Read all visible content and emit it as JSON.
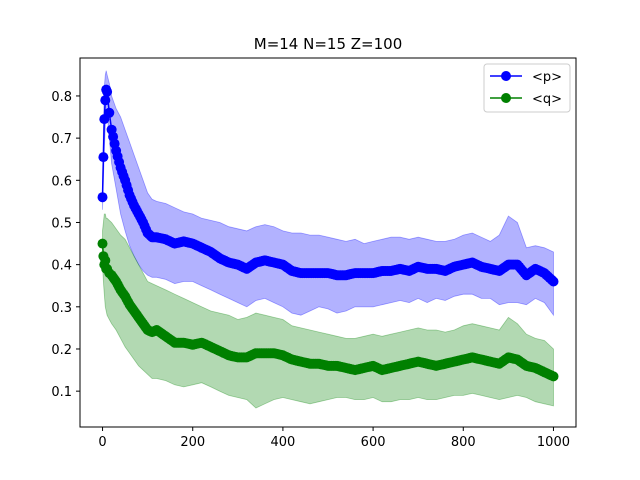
{
  "chart_data": {
    "type": "line",
    "title": "M=14 N=15 Z=100",
    "xlabel": "",
    "ylabel": "",
    "xlim": [
      -50,
      1050
    ],
    "ylim": [
      0.015,
      0.89
    ],
    "x_ticks": [
      0,
      200,
      400,
      600,
      800,
      1000
    ],
    "y_ticks": [
      0.1,
      0.2,
      0.3,
      0.4,
      0.5,
      0.6,
      0.7,
      0.8
    ],
    "legend_position": "top-right",
    "grid": false,
    "series": [
      {
        "name": "<p>",
        "color": "#0000ff",
        "marker": "circle",
        "x": [
          0,
          2,
          4,
          6,
          8,
          10,
          15,
          20,
          30,
          40,
          50,
          60,
          70,
          80,
          90,
          100,
          110,
          120,
          140,
          160,
          180,
          200,
          220,
          240,
          260,
          280,
          300,
          320,
          340,
          360,
          380,
          400,
          420,
          440,
          460,
          480,
          500,
          520,
          540,
          560,
          580,
          600,
          620,
          640,
          660,
          680,
          700,
          720,
          740,
          760,
          780,
          800,
          820,
          840,
          860,
          880,
          900,
          920,
          940,
          960,
          980,
          1000
        ],
        "y": [
          0.56,
          0.655,
          0.745,
          0.79,
          0.815,
          0.81,
          0.76,
          0.72,
          0.67,
          0.63,
          0.6,
          0.565,
          0.54,
          0.52,
          0.5,
          0.475,
          0.465,
          0.465,
          0.46,
          0.45,
          0.455,
          0.45,
          0.44,
          0.43,
          0.415,
          0.405,
          0.4,
          0.39,
          0.405,
          0.41,
          0.405,
          0.4,
          0.385,
          0.38,
          0.38,
          0.38,
          0.38,
          0.375,
          0.375,
          0.38,
          0.38,
          0.38,
          0.385,
          0.385,
          0.39,
          0.385,
          0.395,
          0.39,
          0.39,
          0.385,
          0.395,
          0.4,
          0.405,
          0.395,
          0.39,
          0.385,
          0.4,
          0.4,
          0.375,
          0.39,
          0.38,
          0.36
        ],
        "band_upper": [
          0.58,
          0.72,
          0.82,
          0.85,
          0.86,
          0.85,
          0.83,
          0.8,
          0.77,
          0.75,
          0.72,
          0.69,
          0.66,
          0.63,
          0.6,
          0.57,
          0.555,
          0.55,
          0.545,
          0.535,
          0.525,
          0.52,
          0.51,
          0.505,
          0.5,
          0.49,
          0.485,
          0.48,
          0.49,
          0.495,
          0.49,
          0.48,
          0.475,
          0.475,
          0.47,
          0.47,
          0.465,
          0.46,
          0.455,
          0.46,
          0.45,
          0.455,
          0.46,
          0.465,
          0.465,
          0.46,
          0.465,
          0.46,
          0.455,
          0.455,
          0.46,
          0.47,
          0.475,
          0.465,
          0.455,
          0.47,
          0.515,
          0.5,
          0.44,
          0.445,
          0.44,
          0.43
        ],
        "band_lower": [
          0.53,
          0.6,
          0.67,
          0.73,
          0.76,
          0.76,
          0.7,
          0.64,
          0.58,
          0.52,
          0.48,
          0.445,
          0.42,
          0.4,
          0.385,
          0.375,
          0.37,
          0.37,
          0.365,
          0.355,
          0.36,
          0.36,
          0.35,
          0.34,
          0.33,
          0.32,
          0.31,
          0.3,
          0.315,
          0.32,
          0.31,
          0.3,
          0.285,
          0.28,
          0.29,
          0.3,
          0.295,
          0.285,
          0.29,
          0.3,
          0.3,
          0.3,
          0.305,
          0.31,
          0.315,
          0.31,
          0.32,
          0.31,
          0.32,
          0.315,
          0.325,
          0.33,
          0.33,
          0.32,
          0.32,
          0.305,
          0.31,
          0.31,
          0.305,
          0.32,
          0.31,
          0.28
        ]
      },
      {
        "name": "<q>",
        "color": "#008000",
        "marker": "circle",
        "x": [
          0,
          2,
          4,
          6,
          8,
          10,
          15,
          20,
          30,
          40,
          50,
          60,
          70,
          80,
          90,
          100,
          110,
          120,
          140,
          160,
          180,
          200,
          220,
          240,
          260,
          280,
          300,
          320,
          340,
          360,
          380,
          400,
          420,
          440,
          460,
          480,
          500,
          520,
          540,
          560,
          580,
          600,
          620,
          640,
          660,
          680,
          700,
          720,
          740,
          760,
          780,
          800,
          820,
          840,
          860,
          880,
          900,
          920,
          940,
          960,
          980,
          1000
        ],
        "y": [
          0.45,
          0.42,
          0.4,
          0.41,
          0.39,
          0.39,
          0.38,
          0.375,
          0.36,
          0.34,
          0.325,
          0.305,
          0.29,
          0.275,
          0.26,
          0.245,
          0.24,
          0.245,
          0.23,
          0.215,
          0.215,
          0.21,
          0.215,
          0.205,
          0.195,
          0.185,
          0.18,
          0.18,
          0.19,
          0.19,
          0.19,
          0.185,
          0.175,
          0.17,
          0.165,
          0.165,
          0.16,
          0.16,
          0.155,
          0.15,
          0.155,
          0.16,
          0.15,
          0.155,
          0.16,
          0.165,
          0.17,
          0.165,
          0.16,
          0.165,
          0.17,
          0.175,
          0.18,
          0.175,
          0.17,
          0.165,
          0.18,
          0.175,
          0.16,
          0.155,
          0.145,
          0.135
        ],
        "band_upper": [
          0.48,
          0.5,
          0.52,
          0.52,
          0.51,
          0.51,
          0.505,
          0.5,
          0.485,
          0.47,
          0.46,
          0.44,
          0.42,
          0.4,
          0.38,
          0.36,
          0.355,
          0.35,
          0.34,
          0.33,
          0.32,
          0.31,
          0.3,
          0.29,
          0.285,
          0.28,
          0.27,
          0.275,
          0.285,
          0.28,
          0.275,
          0.27,
          0.255,
          0.25,
          0.245,
          0.24,
          0.235,
          0.23,
          0.225,
          0.225,
          0.23,
          0.235,
          0.23,
          0.235,
          0.24,
          0.245,
          0.25,
          0.245,
          0.245,
          0.24,
          0.245,
          0.255,
          0.26,
          0.255,
          0.25,
          0.245,
          0.275,
          0.26,
          0.235,
          0.225,
          0.22,
          0.2
        ],
        "band_lower": [
          0.4,
          0.36,
          0.33,
          0.3,
          0.29,
          0.28,
          0.27,
          0.26,
          0.245,
          0.225,
          0.205,
          0.19,
          0.175,
          0.16,
          0.15,
          0.14,
          0.13,
          0.13,
          0.125,
          0.115,
          0.11,
          0.115,
          0.12,
          0.11,
          0.1,
          0.09,
          0.085,
          0.08,
          0.06,
          0.07,
          0.08,
          0.085,
          0.08,
          0.075,
          0.07,
          0.075,
          0.08,
          0.085,
          0.085,
          0.08,
          0.08,
          0.085,
          0.075,
          0.075,
          0.08,
          0.08,
          0.085,
          0.08,
          0.08,
          0.085,
          0.09,
          0.09,
          0.095,
          0.09,
          0.085,
          0.08,
          0.085,
          0.09,
          0.085,
          0.075,
          0.07,
          0.065
        ]
      }
    ]
  }
}
